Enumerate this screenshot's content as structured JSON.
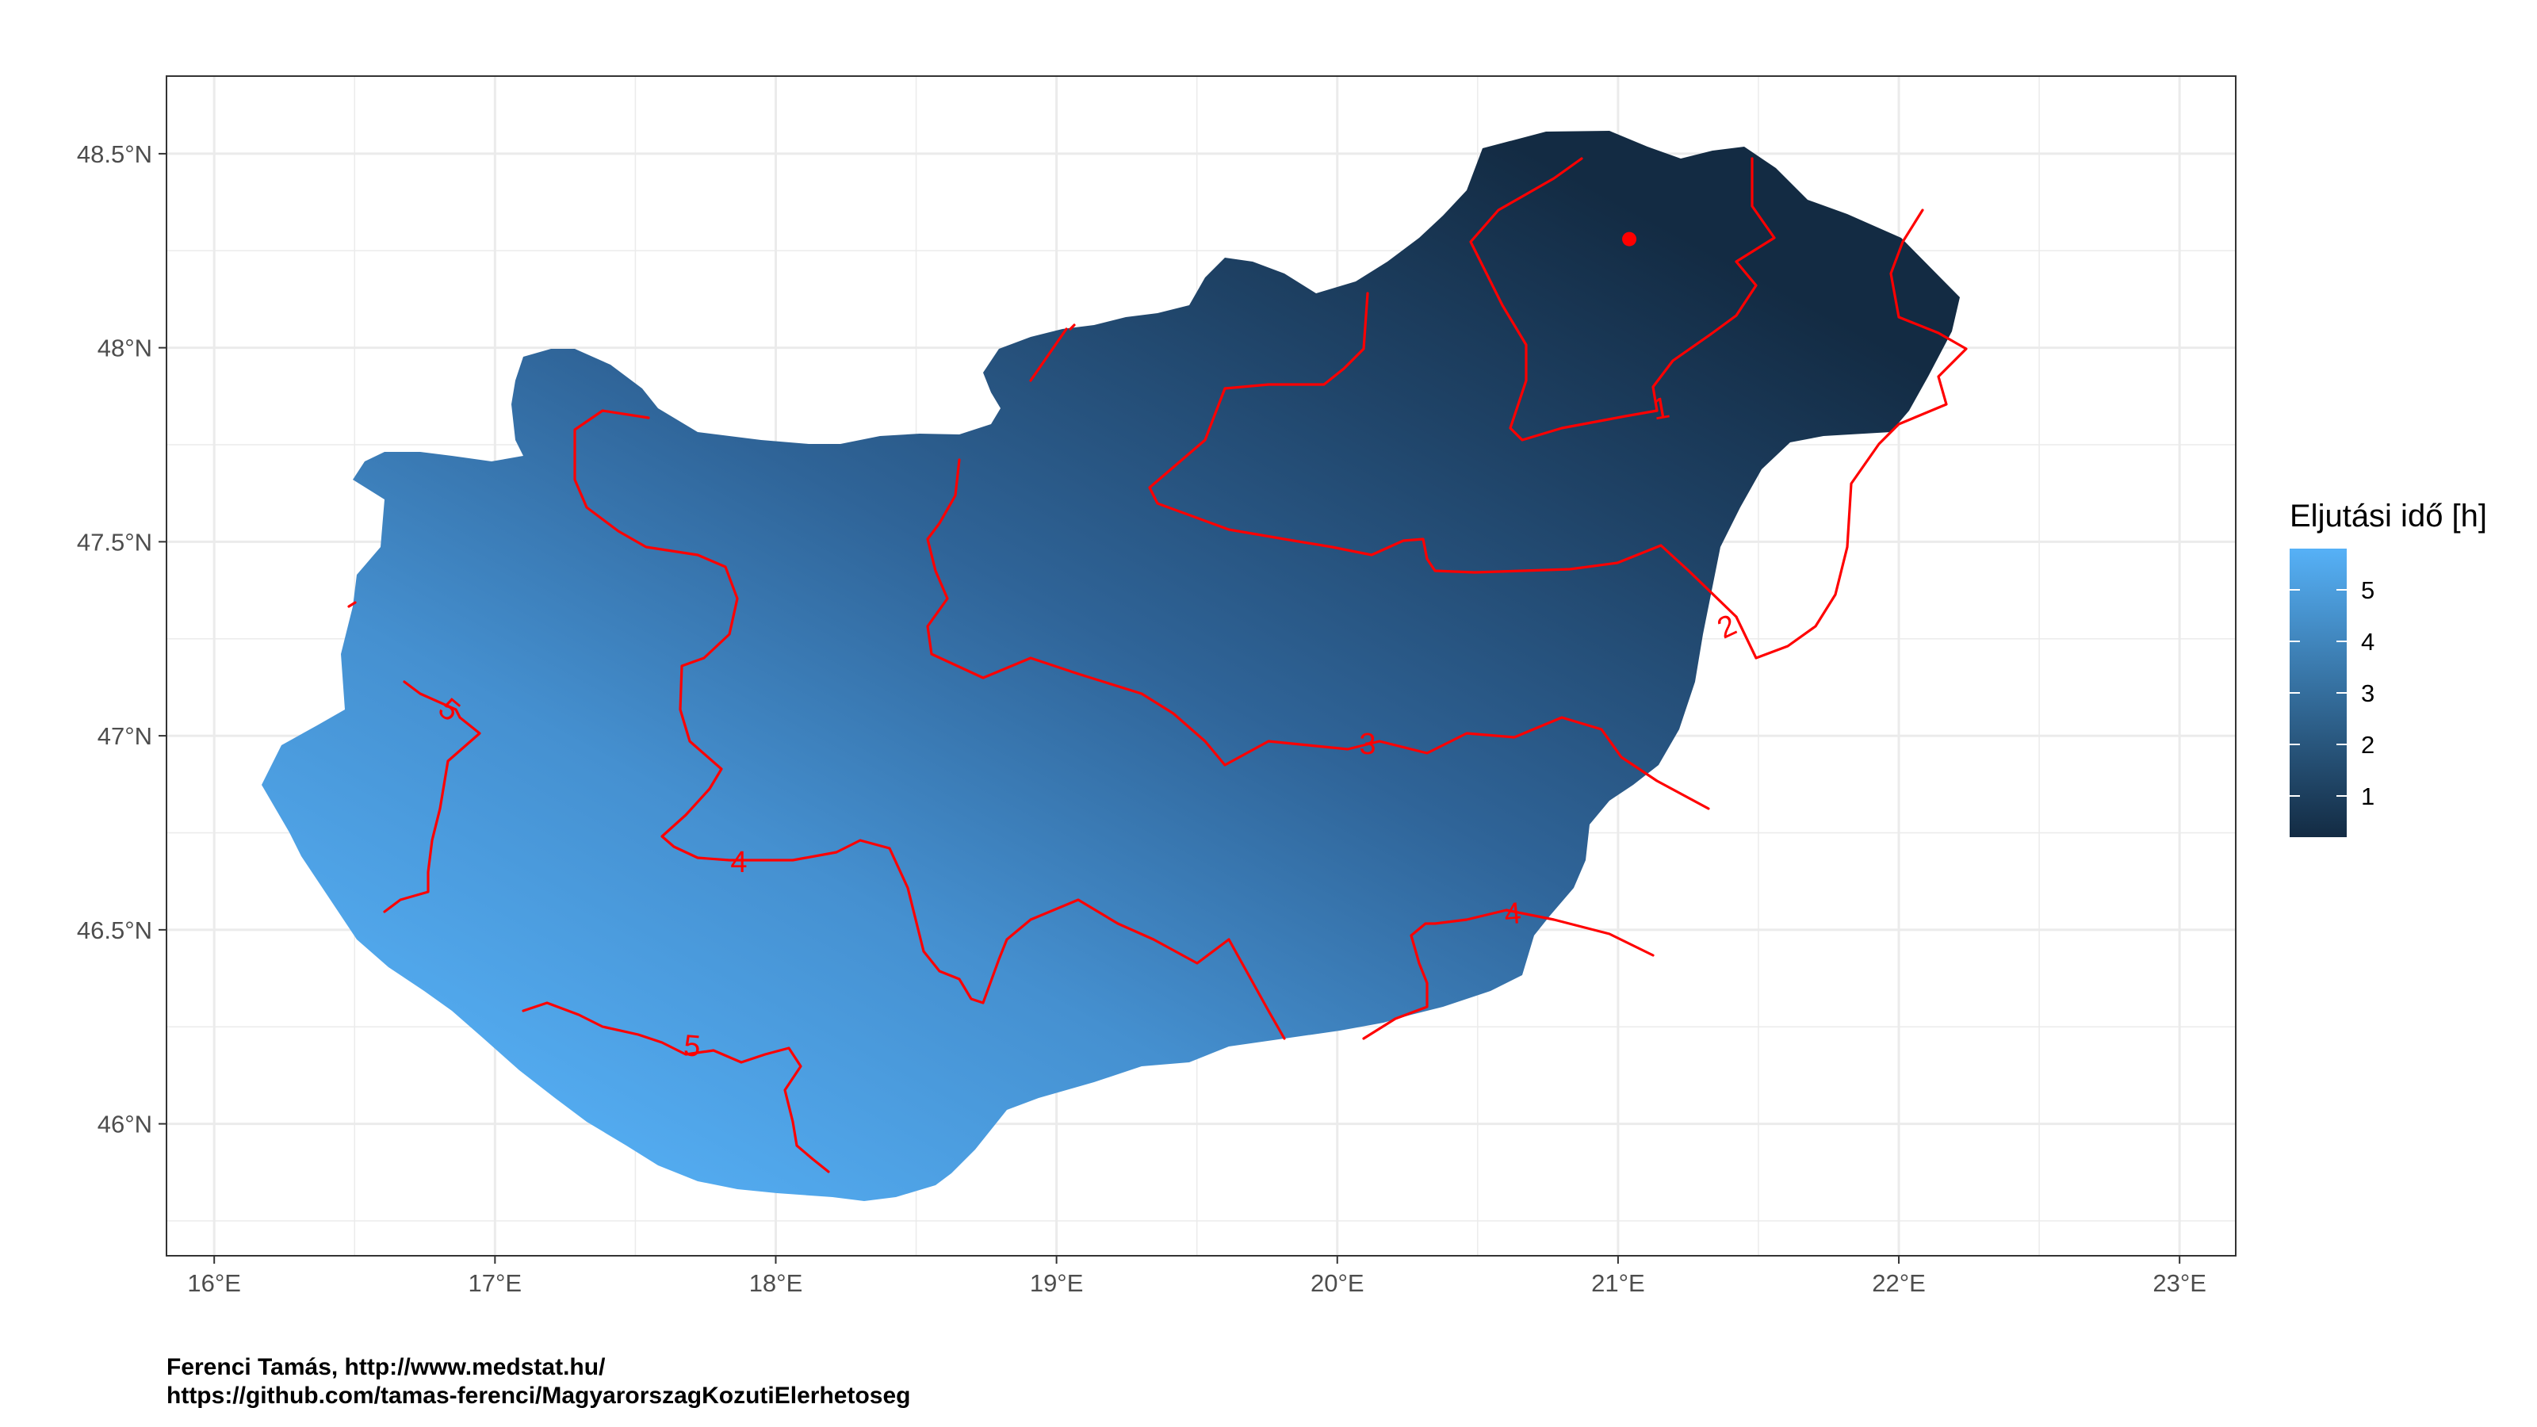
{
  "map": {
    "x_axis": {
      "ticks": [
        "16°E",
        "17°E",
        "18°E",
        "19°E",
        "20°E",
        "21°E",
        "22°E",
        "23°E"
      ],
      "range": [
        15.83,
        23.2
      ]
    },
    "y_axis": {
      "ticks": [
        "46°N",
        "46.5°N",
        "47°N",
        "47.5°N",
        "48°N",
        "48.5°N"
      ],
      "range": [
        45.66,
        48.7
      ]
    },
    "grid": true,
    "fill_colors": {
      "low": "#132B43",
      "high": "#56B1F7"
    },
    "contour_color": "#FF0000",
    "contour_labels": [
      "1",
      "2",
      "3",
      "4",
      "4",
      "5",
      "5"
    ],
    "origin_point": {
      "lon": 21.04,
      "lat": 48.28,
      "color": "#FF0000"
    }
  },
  "legend": {
    "title": "Eljutási idő [h]",
    "labels": [
      "5",
      "4",
      "3",
      "2",
      "1"
    ],
    "range": [
      0.2,
      5.8
    ]
  },
  "caption": {
    "line1": "Ferenci Tamás, http://www.medstat.hu/",
    "line2": "https://github.com/tamas-ferenci/MagyarorszagKozutiElerhetoseg"
  }
}
